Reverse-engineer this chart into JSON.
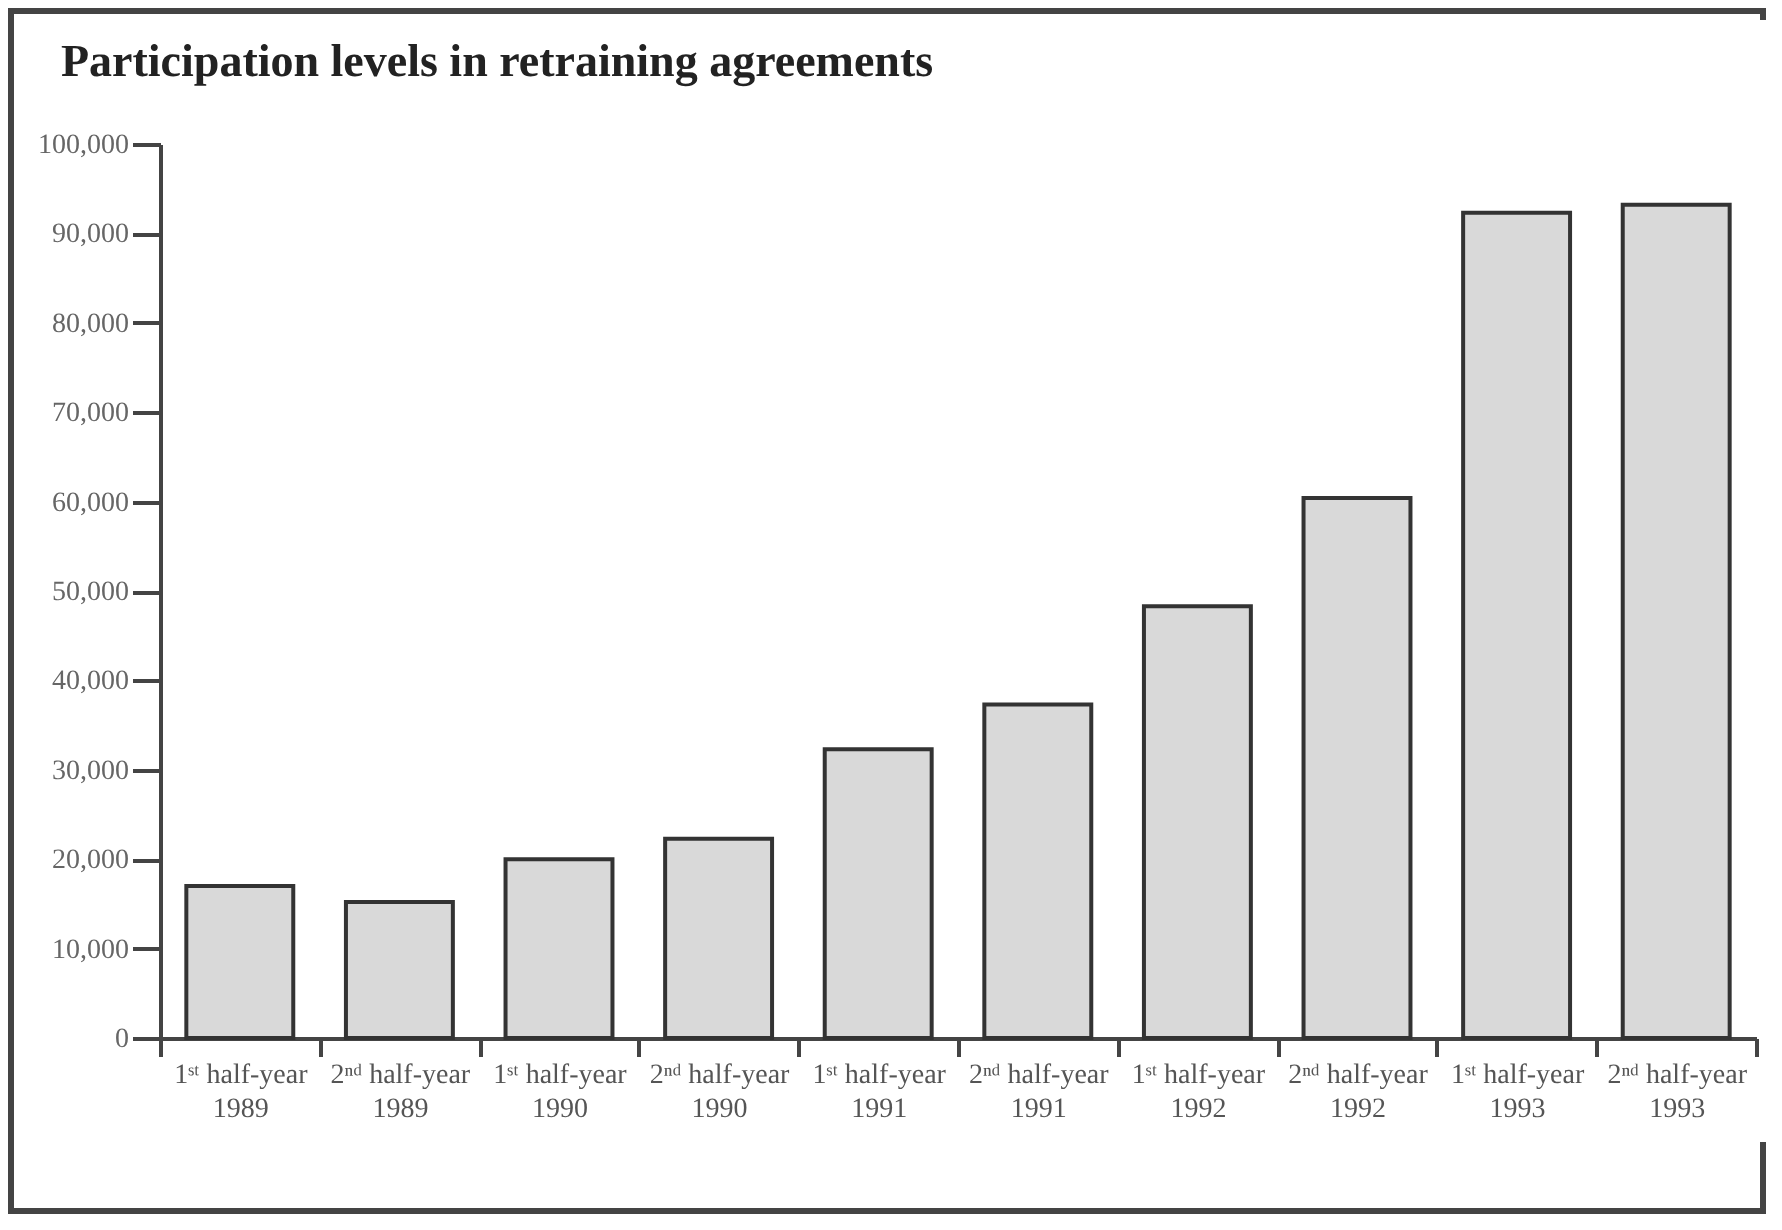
{
  "chart_data": {
    "type": "bar",
    "title": "Participation levels in retraining agreements",
    "categories": [
      "1ˢᵗ half-year\n1989",
      "2ⁿᵈ half-year\n1989",
      "1ˢᵗ half-year\n1990",
      "2ⁿᵈ half-year\n1990",
      "1ˢᵗ half-year\n1991",
      "2ⁿᵈ half-year\n1991",
      "1ˢᵗ half-year\n1992",
      "2ⁿᵈ half-year\n1992",
      "1ˢᵗ half-year\n1993",
      "2ⁿᵈ half-year\n1993"
    ],
    "values": [
      17000,
      15200,
      20000,
      22300,
      32300,
      37300,
      48300,
      60400,
      92300,
      93200
    ],
    "color": "#d9d9d9",
    "ylim": [
      0,
      100000
    ],
    "yticks": [
      0,
      {
        "value": 10000,
        "label": "10,000"
      },
      {
        "value": 20000,
        "label": "20,000"
      },
      {
        "value": 30000,
        "label": "30,000"
      },
      {
        "value": 40000,
        "label": "40,000"
      },
      {
        "value": 50000,
        "label": "50,000"
      },
      {
        "value": 60000,
        "label": "60,000"
      },
      {
        "value": 70000,
        "label": "70,000"
      },
      {
        "value": 80000,
        "label": "80,000"
      },
      {
        "value": 90000,
        "label": "90,000"
      },
      {
        "value": 100000,
        "label": "100,000"
      }
    ],
    "grid": false
  }
}
